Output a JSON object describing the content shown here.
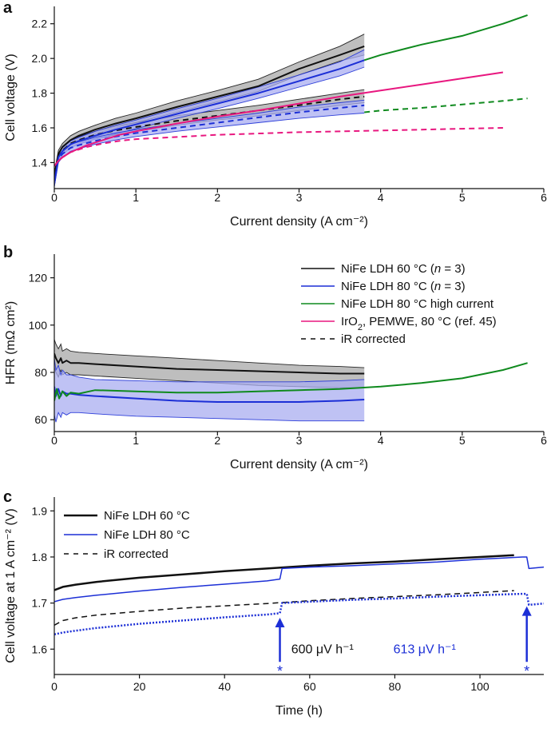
{
  "chart_data": [
    {
      "panel": "a",
      "type": "line",
      "xlabel": "Current density (A cm⁻²)",
      "ylabel": "Cell voltage (V)",
      "xlim": [
        0,
        6
      ],
      "ylim": [
        1.25,
        2.3
      ],
      "xticks": [
        0,
        1,
        2,
        3,
        4,
        5,
        6
      ],
      "yticks": [
        1.4,
        1.6,
        1.8,
        2.0,
        2.2
      ],
      "ytick_labels": [
        "1.4",
        "1.6",
        "1.8",
        "2.0",
        "2.2"
      ],
      "grid": false,
      "series": [
        {
          "name": "NiFe LDH 60 °C",
          "color": "#111111",
          "style": "solid",
          "x": [
            0,
            0.05,
            0.1,
            0.2,
            0.3,
            0.5,
            0.75,
            1,
            1.5,
            2,
            2.5,
            3,
            3.5,
            3.8
          ],
          "y": [
            1.32,
            1.45,
            1.49,
            1.53,
            1.555,
            1.59,
            1.625,
            1.655,
            1.72,
            1.78,
            1.84,
            1.94,
            2.02,
            2.07
          ],
          "band": {
            "color": "#a8a8a8",
            "lower": [
              1.3,
              1.43,
              1.47,
              1.51,
              1.535,
              1.565,
              1.6,
              1.63,
              1.69,
              1.75,
              1.81,
              1.905,
              1.985,
              2.02
            ],
            "upper": [
              1.34,
              1.47,
              1.51,
              1.555,
              1.58,
              1.615,
              1.655,
              1.685,
              1.755,
              1.815,
              1.88,
              1.98,
              2.07,
              2.14
            ]
          }
        },
        {
          "name": "NiFe LDH 60 °C iR corrected",
          "color": "#111111",
          "style": "dashed",
          "x": [
            0,
            0.05,
            0.1,
            0.2,
            0.3,
            0.5,
            0.75,
            1,
            1.5,
            2,
            2.5,
            3,
            3.5,
            3.8
          ],
          "y": [
            1.32,
            1.43,
            1.47,
            1.51,
            1.53,
            1.56,
            1.585,
            1.605,
            1.64,
            1.67,
            1.7,
            1.73,
            1.765,
            1.78
          ],
          "band": {
            "color": "#a8a8a8",
            "lower": [
              1.3,
              1.41,
              1.45,
              1.49,
              1.51,
              1.535,
              1.56,
              1.58,
              1.615,
              1.645,
              1.67,
              1.7,
              1.73,
              1.745
            ],
            "upper": [
              1.34,
              1.45,
              1.49,
              1.53,
              1.55,
              1.58,
              1.61,
              1.63,
              1.67,
              1.7,
              1.73,
              1.765,
              1.8,
              1.82
            ]
          }
        },
        {
          "name": "NiFe LDH 80 °C",
          "color": "#1c2fd6",
          "style": "solid",
          "x": [
            0,
            0.05,
            0.1,
            0.2,
            0.3,
            0.5,
            0.75,
            1,
            1.5,
            2,
            2.5,
            3,
            3.5,
            3.8
          ],
          "y": [
            1.28,
            1.43,
            1.465,
            1.505,
            1.525,
            1.555,
            1.59,
            1.62,
            1.68,
            1.74,
            1.8,
            1.87,
            1.94,
            1.99
          ],
          "band": {
            "color": "#a9aef0",
            "lower": [
              1.26,
              1.41,
              1.445,
              1.485,
              1.505,
              1.535,
              1.565,
              1.595,
              1.655,
              1.71,
              1.77,
              1.835,
              1.9,
              1.95
            ],
            "upper": [
              1.3,
              1.45,
              1.485,
              1.525,
              1.545,
              1.58,
              1.615,
              1.645,
              1.71,
              1.77,
              1.835,
              1.905,
              1.98,
              2.05
            ]
          }
        },
        {
          "name": "NiFe LDH 80 °C iR corrected",
          "color": "#1c2fd6",
          "style": "dashed",
          "x": [
            0,
            0.05,
            0.1,
            0.2,
            0.3,
            0.5,
            0.75,
            1,
            1.5,
            2,
            2.5,
            3,
            3.5,
            3.8
          ],
          "y": [
            1.28,
            1.42,
            1.45,
            1.485,
            1.5,
            1.525,
            1.55,
            1.57,
            1.6,
            1.63,
            1.66,
            1.69,
            1.715,
            1.73
          ],
          "band": {
            "color": "#a9aef0",
            "lower": [
              1.26,
              1.4,
              1.43,
              1.465,
              1.48,
              1.505,
              1.53,
              1.55,
              1.58,
              1.605,
              1.63,
              1.655,
              1.675,
              1.685
            ],
            "upper": [
              1.3,
              1.44,
              1.47,
              1.505,
              1.52,
              1.545,
              1.57,
              1.59,
              1.625,
              1.655,
              1.685,
              1.72,
              1.745,
              1.76
            ]
          }
        },
        {
          "name": "NiFe LDH 80 °C high current",
          "color": "#0f8a1e",
          "style": "solid",
          "x": [
            3.8,
            4,
            4.5,
            5,
            5.5,
            5.8
          ],
          "y": [
            1.99,
            2.02,
            2.08,
            2.13,
            2.2,
            2.25
          ]
        },
        {
          "name": "NiFe LDH 80 °C high current iR corrected",
          "color": "#0f8a1e",
          "style": "dashed",
          "x": [
            3.8,
            4,
            4.5,
            5,
            5.5,
            5.8
          ],
          "y": [
            1.69,
            1.7,
            1.715,
            1.735,
            1.755,
            1.77
          ]
        },
        {
          "name": "IrO2, PEMWE, 80 °C (ref. 45)",
          "color": "#e8177f",
          "style": "solid",
          "x": [
            0,
            0.05,
            0.1,
            0.2,
            0.4,
            0.6,
            0.8,
            1,
            1.5,
            2,
            2.5,
            3,
            3.5,
            4,
            4.5,
            5,
            5.5
          ],
          "y": [
            1.38,
            1.41,
            1.43,
            1.46,
            1.5,
            1.53,
            1.56,
            1.58,
            1.625,
            1.665,
            1.7,
            1.74,
            1.78,
            1.815,
            1.85,
            1.885,
            1.92
          ]
        },
        {
          "name": "IrO2, PEMWE, 80 °C (ref. 45) iR corrected",
          "color": "#e8177f",
          "style": "dashed",
          "x": [
            0,
            0.05,
            0.1,
            0.2,
            0.4,
            0.6,
            0.8,
            1,
            2,
            3,
            4,
            5,
            5.5
          ],
          "y": [
            1.38,
            1.41,
            1.43,
            1.46,
            1.49,
            1.51,
            1.525,
            1.535,
            1.56,
            1.575,
            1.585,
            1.595,
            1.6
          ]
        }
      ]
    },
    {
      "panel": "b",
      "type": "line",
      "xlabel": "Current density (A cm⁻²)",
      "ylabel": "HFR (mΩ cm²)",
      "xlim": [
        0,
        6
      ],
      "ylim": [
        55,
        130
      ],
      "xticks": [
        0,
        1,
        2,
        3,
        4,
        5,
        6
      ],
      "yticks": [
        60,
        80,
        100,
        120
      ],
      "grid": false,
      "legend": {
        "position": "top-right",
        "entries": [
          {
            "label": "NiFe LDH 60 °C (",
            "label_italic": "n",
            "label_end": " = 3)",
            "color": "#111111",
            "style": "solid"
          },
          {
            "label": "NiFe LDH 80 °C (",
            "label_italic": "n",
            "label_end": " = 3)",
            "color": "#1c2fd6",
            "style": "solid"
          },
          {
            "label": "NiFe LDH 80 °C high current",
            "label_italic": "",
            "label_end": "",
            "color": "#0f8a1e",
            "style": "solid"
          },
          {
            "label": "IrO",
            "label_sub": "2",
            "label_end": ", PEMWE, 80 °C (ref. 45)",
            "color": "#e8177f",
            "style": "solid"
          },
          {
            "label": "iR corrected",
            "label_italic": "",
            "label_end": "",
            "color": "#111111",
            "style": "dashed"
          }
        ]
      },
      "series": [
        {
          "name": "NiFe LDH 60 °C",
          "color": "#111111",
          "style": "solid",
          "x": [
            0,
            0.02,
            0.05,
            0.08,
            0.1,
            0.15,
            0.2,
            0.3,
            0.5,
            1,
            1.5,
            2,
            2.5,
            3,
            3.5,
            3.8
          ],
          "y": [
            88,
            86,
            84,
            86,
            84,
            85,
            84,
            84,
            83.5,
            82.5,
            81.5,
            81,
            80.5,
            80,
            79.5,
            79.5
          ],
          "band": {
            "color": "#a8a8a8",
            "lower": [
              82,
              80,
              78,
              81,
              79,
              80,
              79,
              79,
              78.5,
              77.5,
              76.5,
              75.5,
              74.5,
              74,
              73.5,
              73.5
            ],
            "upper": [
              94,
              92,
              90,
              92,
              89,
              90,
              89,
              88.5,
              88,
              87,
              86,
              85,
              84,
              83,
              82.5,
              82
            ]
          }
        },
        {
          "name": "NiFe LDH 80 °C",
          "color": "#1c2fd6",
          "style": "solid",
          "x": [
            0,
            0.02,
            0.05,
            0.08,
            0.1,
            0.15,
            0.2,
            0.3,
            0.5,
            1,
            1.5,
            2,
            2.5,
            3,
            3.5,
            3.8
          ],
          "y": [
            74,
            70,
            73,
            70,
            72,
            71,
            71,
            70.5,
            70,
            69,
            68,
            67.5,
            67.5,
            67.5,
            68,
            68.5
          ],
          "band": {
            "color": "#a9aef0",
            "lower": [
              62,
              59,
              63,
              61,
              63,
              62,
              63,
              63,
              62.5,
              61.5,
              61,
              60.5,
              60,
              59.5,
              59.5,
              59.5
            ],
            "upper": [
              86,
              81,
              83,
              79,
              81,
              79,
              79,
              78,
              77,
              76.5,
              76,
              76,
              76,
              76,
              76.5,
              77
            ]
          }
        },
        {
          "name": "NiFe LDH 80 °C high current",
          "color": "#0f8a1e",
          "style": "solid",
          "x": [
            0,
            0.03,
            0.06,
            0.1,
            0.15,
            0.2,
            0.3,
            0.5,
            1,
            1.5,
            2,
            2.5,
            3,
            3.5,
            4,
            4.5,
            5,
            5.5,
            5.8
          ],
          "y": [
            68,
            73,
            69,
            72,
            70,
            71.5,
            71,
            72.5,
            72,
            71.5,
            71.5,
            72,
            72.5,
            73,
            74,
            75.5,
            77.5,
            81,
            84
          ]
        }
      ]
    },
    {
      "panel": "c",
      "type": "line",
      "xlabel": "Time (h)",
      "ylabel": "Cell voltage at 1 A cm⁻² (V)",
      "xlim": [
        0,
        115
      ],
      "ylim": [
        1.545,
        1.93
      ],
      "xticks": [
        0,
        20,
        40,
        60,
        80,
        100
      ],
      "yticks": [
        1.6,
        1.7,
        1.8,
        1.9
      ],
      "grid": false,
      "legend": {
        "position": "top-left",
        "entries": [
          {
            "label": "NiFe LDH 60 °C",
            "color": "#111111",
            "style": "solid"
          },
          {
            "label": "NiFe LDH 80 °C",
            "color": "#1c2fd6",
            "style": "solid"
          },
          {
            "label": "iR corrected",
            "color": "#111111",
            "style": "dashed"
          }
        ]
      },
      "annotations": [
        {
          "text": "600 μV h⁻¹",
          "color": "#111111",
          "x": 63,
          "y": 1.6
        },
        {
          "text": "613 μV h⁻¹",
          "color": "#1c2fd6",
          "x": 87,
          "y": 1.6
        },
        {
          "text": "*",
          "color": "#1c2fd6",
          "x": 53,
          "y": 1.555,
          "arrow_to": 1.675
        },
        {
          "text": "*",
          "color": "#1c2fd6",
          "x": 111,
          "y": 1.555,
          "arrow_to": 1.7
        }
      ],
      "series": [
        {
          "name": "NiFe LDH 60 °C",
          "color": "#111111",
          "style": "solid",
          "width": 2.5,
          "x": [
            0,
            2,
            5,
            10,
            20,
            30,
            40,
            50,
            60,
            70,
            80,
            90,
            100,
            108
          ],
          "y": [
            1.728,
            1.735,
            1.74,
            1.746,
            1.755,
            1.762,
            1.769,
            1.775,
            1.781,
            1.786,
            1.79,
            1.795,
            1.8,
            1.804
          ]
        },
        {
          "name": "NiFe LDH 60 °C iR corrected",
          "color": "#111111",
          "style": "dashed",
          "width": 1.5,
          "x": [
            0,
            2,
            5,
            10,
            20,
            30,
            40,
            50,
            60,
            70,
            80,
            90,
            100,
            108
          ],
          "y": [
            1.652,
            1.662,
            1.668,
            1.674,
            1.682,
            1.689,
            1.694,
            1.699,
            1.705,
            1.71,
            1.714,
            1.718,
            1.723,
            1.727
          ]
        },
        {
          "name": "NiFe LDH 80 °C",
          "color": "#1c2fd6",
          "style": "solid",
          "width": 1.5,
          "x": [
            0,
            2,
            5,
            10,
            20,
            30,
            40,
            50,
            53,
            53.5,
            60,
            70,
            80,
            90,
            100,
            110,
            111,
            111.5,
            115
          ],
          "y": [
            1.703,
            1.708,
            1.712,
            1.717,
            1.726,
            1.734,
            1.741,
            1.748,
            1.752,
            1.775,
            1.778,
            1.781,
            1.785,
            1.789,
            1.795,
            1.8,
            1.8,
            1.775,
            1.778
          ]
        },
        {
          "name": "NiFe LDH 80 °C iR corrected",
          "color": "#1c2fd6",
          "style": "dotted",
          "width": 2.5,
          "x": [
            0,
            2,
            5,
            10,
            20,
            30,
            40,
            50,
            53,
            53.5,
            60,
            70,
            80,
            90,
            100,
            110,
            111,
            111.5,
            115
          ],
          "y": [
            1.632,
            1.636,
            1.64,
            1.646,
            1.655,
            1.662,
            1.669,
            1.675,
            1.678,
            1.7,
            1.703,
            1.707,
            1.71,
            1.714,
            1.717,
            1.72,
            1.72,
            1.696,
            1.699
          ]
        }
      ]
    }
  ]
}
